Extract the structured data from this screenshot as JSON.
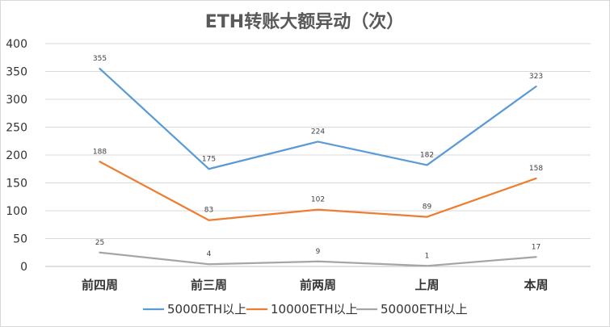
{
  "chart_data": {
    "type": "line",
    "title": "ETH转账大额异动（次）",
    "xlabel": "",
    "ylabel": "",
    "categories": [
      "前四周",
      "前三周",
      "前两周",
      "上周",
      "本周"
    ],
    "ylim": [
      0,
      400
    ],
    "yticks": [
      0,
      50,
      100,
      150,
      200,
      250,
      300,
      350,
      400
    ],
    "grid": true,
    "legend_position": "bottom",
    "series": [
      {
        "name": "5000ETH以上",
        "color": "#5b9bd5",
        "values": [
          355,
          175,
          224,
          182,
          323
        ]
      },
      {
        "name": "10000ETH以上",
        "color": "#ed7d31",
        "values": [
          188,
          83,
          102,
          89,
          158
        ]
      },
      {
        "name": "50000ETH以上",
        "color": "#a5a5a5",
        "values": [
          25,
          4,
          9,
          1,
          17
        ]
      }
    ]
  }
}
